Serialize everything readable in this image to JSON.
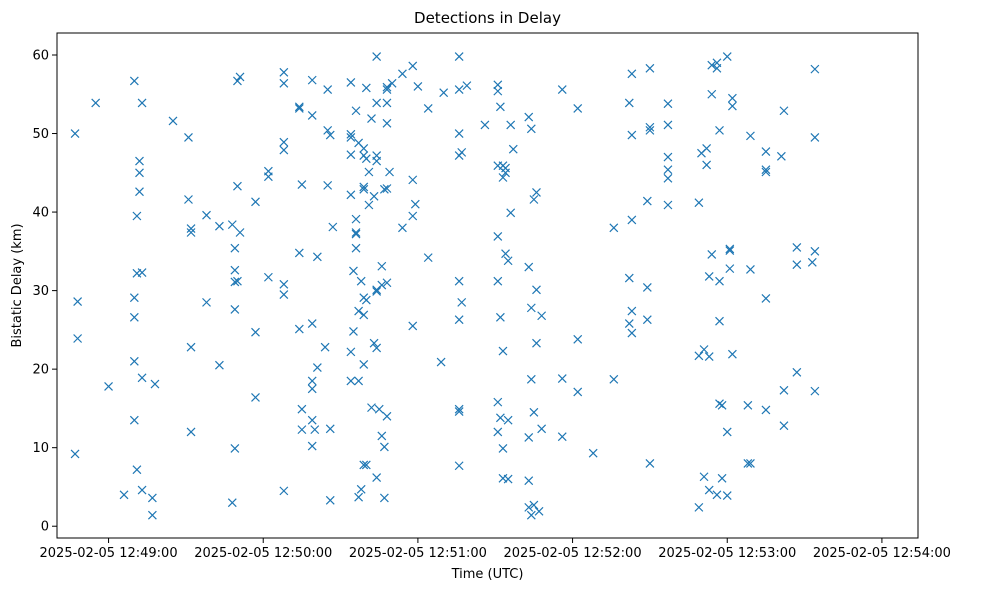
{
  "chart_data": {
    "type": "scatter",
    "title": "Detections in Delay",
    "xlabel": "Time (UTC)",
    "ylabel": "Bistatic Delay (km)",
    "marker": "x",
    "marker_color": "#1f77b4",
    "grid": false,
    "x_axis": {
      "type": "time",
      "range_seconds_after": [
        "2025-02-05 12:48:40",
        334
      ],
      "ticks": [
        "2025-02-05 12:49:00",
        "2025-02-05 12:50:00",
        "2025-02-05 12:51:00",
        "2025-02-05 12:52:00",
        "2025-02-05 12:53:00",
        "2025-02-05 12:54:00"
      ]
    },
    "y_axis": {
      "range": [
        -1.5,
        62.8
      ],
      "ticks": [
        0,
        10,
        20,
        30,
        40,
        50,
        60
      ]
    },
    "time_origin": "2025-02-05 12:48:40",
    "series": [
      {
        "points": [
          [
            7,
            50
          ],
          [
            7,
            9.2
          ],
          [
            8,
            23.9
          ],
          [
            8,
            28.6
          ],
          [
            15,
            53.9
          ],
          [
            20,
            17.8
          ],
          [
            26,
            4
          ],
          [
            30,
            56.7
          ],
          [
            30,
            29.1
          ],
          [
            30,
            26.6
          ],
          [
            30,
            21
          ],
          [
            30,
            13.5
          ],
          [
            31,
            39.5
          ],
          [
            31,
            32.2
          ],
          [
            31,
            7.2
          ],
          [
            32,
            46.5
          ],
          [
            32,
            45
          ],
          [
            32,
            42.6
          ],
          [
            33,
            53.9
          ],
          [
            33,
            32.3
          ],
          [
            33,
            18.9
          ],
          [
            33,
            4.6
          ],
          [
            37,
            3.6
          ],
          [
            37,
            1.4
          ],
          [
            38,
            18.1
          ],
          [
            45,
            51.6
          ],
          [
            51,
            49.5
          ],
          [
            51,
            41.6
          ],
          [
            52,
            37.9
          ],
          [
            52,
            37.4
          ],
          [
            52,
            22.8
          ],
          [
            52,
            12
          ],
          [
            58,
            28.5
          ],
          [
            58,
            39.6
          ],
          [
            63,
            38.2
          ],
          [
            63,
            20.5
          ],
          [
            68,
            38.4
          ],
          [
            68,
            3
          ],
          [
            69,
            32.6
          ],
          [
            69,
            31.1
          ],
          [
            69,
            27.6
          ],
          [
            69,
            35.4
          ],
          [
            69,
            9.9
          ],
          [
            70,
            56.7
          ],
          [
            70,
            43.3
          ],
          [
            70,
            31.2
          ],
          [
            71,
            57.2
          ],
          [
            71,
            37.4
          ],
          [
            77,
            41.3
          ],
          [
            77,
            24.7
          ],
          [
            77,
            16.4
          ],
          [
            82,
            45.2
          ],
          [
            82,
            44.5
          ],
          [
            82,
            31.7
          ],
          [
            88,
            57.8
          ],
          [
            88,
            56.4
          ],
          [
            88,
            48.9
          ],
          [
            88,
            47.9
          ],
          [
            88,
            30.8
          ],
          [
            88,
            29.5
          ],
          [
            88,
            4.5
          ],
          [
            94,
            53.4
          ],
          [
            94,
            53.2
          ],
          [
            94,
            34.8
          ],
          [
            94,
            25.1
          ],
          [
            95,
            43.5
          ],
          [
            95,
            14.9
          ],
          [
            95,
            12.3
          ],
          [
            99,
            56.8
          ],
          [
            99,
            52.3
          ],
          [
            99,
            25.8
          ],
          [
            99,
            18.5
          ],
          [
            99,
            17.5
          ],
          [
            99,
            13.5
          ],
          [
            99,
            10.2
          ],
          [
            100,
            12.3
          ],
          [
            101,
            34.3
          ],
          [
            101,
            20.2
          ],
          [
            104,
            22.8
          ],
          [
            105,
            43.4
          ],
          [
            105,
            50.4
          ],
          [
            105,
            55.6
          ],
          [
            106,
            49.8
          ],
          [
            106,
            12.4
          ],
          [
            106,
            3.3
          ],
          [
            107,
            38.1
          ],
          [
            114,
            56.5
          ],
          [
            114,
            49.9
          ],
          [
            114,
            49.5
          ],
          [
            114,
            47.3
          ],
          [
            114,
            42.2
          ],
          [
            114,
            22.2
          ],
          [
            114,
            18.5
          ],
          [
            115,
            32.5
          ],
          [
            115,
            24.8
          ],
          [
            116,
            52.9
          ],
          [
            116,
            39.1
          ],
          [
            116,
            37.4
          ],
          [
            116,
            37.2
          ],
          [
            116,
            35.4
          ],
          [
            117,
            48.8
          ],
          [
            117,
            27.4
          ],
          [
            117,
            18.5
          ],
          [
            117,
            3.7
          ],
          [
            118,
            31.2
          ],
          [
            118,
            4.7
          ],
          [
            119,
            48.1
          ],
          [
            119,
            47.2
          ],
          [
            119,
            43.2
          ],
          [
            119,
            42.9
          ],
          [
            119,
            29.1
          ],
          [
            119,
            26.9
          ],
          [
            119,
            20.6
          ],
          [
            119,
            7.8
          ],
          [
            120,
            55.8
          ],
          [
            120,
            46.8
          ],
          [
            120,
            28.8
          ],
          [
            120,
            7.8
          ],
          [
            121,
            45.1
          ],
          [
            121,
            40.9
          ],
          [
            122,
            51.9
          ],
          [
            122,
            15.1
          ],
          [
            123,
            42
          ],
          [
            123,
            23.3
          ],
          [
            124,
            46.5
          ],
          [
            124,
            29.9
          ],
          [
            124,
            22.7
          ],
          [
            124,
            59.8
          ],
          [
            124,
            53.9
          ],
          [
            124,
            47.2
          ],
          [
            124,
            30.1
          ],
          [
            124,
            6.2
          ],
          [
            125,
            14.9
          ],
          [
            126,
            30.7
          ],
          [
            126,
            33.1
          ],
          [
            126,
            11.5
          ],
          [
            127,
            42.9
          ],
          [
            127,
            10.1
          ],
          [
            127,
            3.6
          ],
          [
            128,
            55.6
          ],
          [
            128,
            55.9
          ],
          [
            128,
            53.9
          ],
          [
            128,
            43
          ],
          [
            128,
            51.3
          ],
          [
            128,
            31
          ],
          [
            128,
            14
          ],
          [
            129,
            45.1
          ],
          [
            130,
            56.4
          ],
          [
            134,
            57.6
          ],
          [
            134,
            38
          ],
          [
            138,
            58.6
          ],
          [
            138,
            44.1
          ],
          [
            138,
            39.5
          ],
          [
            138,
            25.5
          ],
          [
            139,
            41
          ],
          [
            140,
            56
          ],
          [
            144,
            53.2
          ],
          [
            144,
            34.2
          ],
          [
            149,
            20.9
          ],
          [
            150,
            55.2
          ],
          [
            156,
            59.8
          ],
          [
            156,
            55.6
          ],
          [
            156,
            50
          ],
          [
            156,
            47.2
          ],
          [
            156,
            31.2
          ],
          [
            156,
            26.3
          ],
          [
            156,
            14.9
          ],
          [
            156,
            14.6
          ],
          [
            156,
            7.7
          ],
          [
            157,
            47.6
          ],
          [
            157,
            28.5
          ],
          [
            159,
            56.1
          ],
          [
            166,
            51.1
          ],
          [
            171,
            56.2
          ],
          [
            171,
            55.4
          ],
          [
            171,
            45.9
          ],
          [
            171,
            36.9
          ],
          [
            171,
            31.2
          ],
          [
            171,
            15.8
          ],
          [
            171,
            12
          ],
          [
            172,
            53.4
          ],
          [
            172,
            26.6
          ],
          [
            172,
            13.8
          ],
          [
            173,
            45.9
          ],
          [
            173,
            44.4
          ],
          [
            173,
            22.3
          ],
          [
            173,
            9.9
          ],
          [
            173,
            6.1
          ],
          [
            174,
            45.6
          ],
          [
            174,
            34.7
          ],
          [
            174,
            45
          ],
          [
            175,
            33.8
          ],
          [
            175,
            13.5
          ],
          [
            175,
            6
          ],
          [
            176,
            51.1
          ],
          [
            176,
            39.9
          ],
          [
            177,
            48
          ],
          [
            183,
            52.1
          ],
          [
            183,
            33
          ],
          [
            183,
            11.3
          ],
          [
            183,
            5.8
          ],
          [
            183,
            2.4
          ],
          [
            184,
            50.6
          ],
          [
            184,
            27.8
          ],
          [
            184,
            18.7
          ],
          [
            184,
            1.4
          ],
          [
            185,
            14.5
          ],
          [
            185,
            2.7
          ],
          [
            185,
            41.6
          ],
          [
            186,
            42.5
          ],
          [
            186,
            30.1
          ],
          [
            186,
            23.3
          ],
          [
            187,
            1.9
          ],
          [
            188,
            12.4
          ],
          [
            188,
            26.8
          ],
          [
            196,
            55.6
          ],
          [
            196,
            18.8
          ],
          [
            196,
            11.4
          ],
          [
            202,
            53.2
          ],
          [
            202,
            23.8
          ],
          [
            202,
            17.1
          ],
          [
            208,
            9.3
          ],
          [
            216,
            38
          ],
          [
            216,
            18.7
          ],
          [
            222,
            53.9
          ],
          [
            222,
            31.6
          ],
          [
            222,
            25.8
          ],
          [
            223,
            57.6
          ],
          [
            223,
            49.8
          ],
          [
            223,
            39
          ],
          [
            223,
            27.4
          ],
          [
            223,
            24.6
          ],
          [
            229,
            41.4
          ],
          [
            229,
            30.4
          ],
          [
            229,
            26.3
          ],
          [
            230,
            58.3
          ],
          [
            230,
            50.8
          ],
          [
            230,
            50.4
          ],
          [
            230,
            8
          ],
          [
            237,
            53.8
          ],
          [
            237,
            51.1
          ],
          [
            237,
            47
          ],
          [
            237,
            45.4
          ],
          [
            237,
            44.3
          ],
          [
            237,
            40.9
          ],
          [
            249,
            41.2
          ],
          [
            249,
            21.7
          ],
          [
            249,
            2.4
          ],
          [
            250,
            47.5
          ],
          [
            251,
            22.5
          ],
          [
            251,
            6.3
          ],
          [
            252,
            48.1
          ],
          [
            252,
            46
          ],
          [
            253,
            21.6
          ],
          [
            253,
            4.6
          ],
          [
            253,
            31.8
          ],
          [
            254,
            58.7
          ],
          [
            254,
            55
          ],
          [
            254,
            34.6
          ],
          [
            256,
            58.3
          ],
          [
            256,
            59
          ],
          [
            256,
            4
          ],
          [
            257,
            50.4
          ],
          [
            257,
            31.2
          ],
          [
            257,
            26.1
          ],
          [
            257,
            15.6
          ],
          [
            258,
            15.4
          ],
          [
            258,
            6.1
          ],
          [
            260,
            59.8
          ],
          [
            260,
            12
          ],
          [
            260,
            3.9
          ],
          [
            261,
            35.3
          ],
          [
            261,
            35.1
          ],
          [
            261,
            32.8
          ],
          [
            262,
            53.5
          ],
          [
            262,
            54.5
          ],
          [
            262,
            21.9
          ],
          [
            268,
            15.4
          ],
          [
            268,
            8
          ],
          [
            269,
            49.7
          ],
          [
            269,
            32.7
          ],
          [
            269,
            8
          ],
          [
            275,
            47.7
          ],
          [
            275,
            45.4
          ],
          [
            275,
            45.1
          ],
          [
            275,
            29
          ],
          [
            275,
            14.8
          ],
          [
            281,
            47.1
          ],
          [
            282,
            52.9
          ],
          [
            282,
            17.3
          ],
          [
            282,
            12.8
          ],
          [
            287,
            35.5
          ],
          [
            287,
            33.3
          ],
          [
            287,
            19.6
          ],
          [
            293,
            33.6
          ],
          [
            294,
            58.2
          ],
          [
            294,
            49.5
          ],
          [
            294,
            35
          ],
          [
            294,
            17.2
          ]
        ]
      }
    ]
  }
}
